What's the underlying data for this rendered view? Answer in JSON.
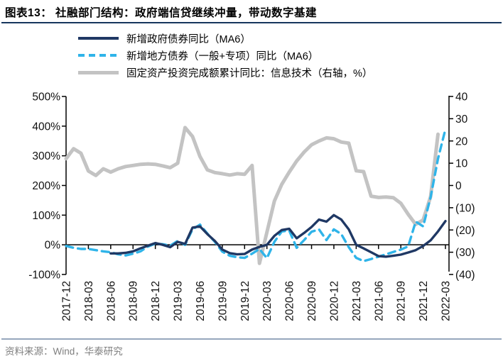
{
  "header": {
    "title": "图表13：  社融部门结构：政府端信贷继续冲量，带动数字基建"
  },
  "legend": [
    {
      "id": "gov_bonds",
      "label": "新增政府债券同比（MA6）",
      "color": "#1f3864",
      "style": "solid"
    },
    {
      "id": "local_bonds",
      "label": "新增地方债券（一般+专项）同比（MA6）",
      "color": "#2fb4e9",
      "style": "dashed"
    },
    {
      "id": "it_fai",
      "label": "固定资产投资完成额累计同比：信息技术（右轴，%）",
      "color": "#c3c3c3",
      "style": "solid"
    }
  ],
  "chart_data": {
    "type": "line",
    "title": "社融部门结构：政府端信贷继续冲量，带动数字基建",
    "grid": false,
    "legend_position": "top-left",
    "x": [
      "2017-12",
      "2018-01",
      "2018-02",
      "2018-03",
      "2018-04",
      "2018-05",
      "2018-06",
      "2018-07",
      "2018-08",
      "2018-09",
      "2018-10",
      "2018-11",
      "2018-12",
      "2019-01",
      "2019-02",
      "2019-03",
      "2019-04",
      "2019-05",
      "2019-06",
      "2019-07",
      "2019-08",
      "2019-09",
      "2019-10",
      "2019-11",
      "2019-12",
      "2020-01",
      "2020-02",
      "2020-03",
      "2020-04",
      "2020-05",
      "2020-06",
      "2020-07",
      "2020-08",
      "2020-09",
      "2020-10",
      "2020-11",
      "2020-12",
      "2021-01",
      "2021-02",
      "2021-03",
      "2021-04",
      "2021-05",
      "2021-06",
      "2021-07",
      "2021-08",
      "2021-09",
      "2021-10",
      "2021-11",
      "2021-12",
      "2022-01",
      "2022-02",
      "2022-03"
    ],
    "x_tick_labels": [
      "2017-12",
      "2018-03",
      "2018-06",
      "2018-09",
      "2018-12",
      "2019-03",
      "2019-06",
      "2019-09",
      "2019-12",
      "2020-03",
      "2020-06",
      "2020-09",
      "2020-12",
      "2021-03",
      "2021-06",
      "2021-09",
      "2021-12",
      "2022-03"
    ],
    "left_axis": {
      "unit": "%",
      "min": -100,
      "max": 500,
      "tick_values": [
        500,
        400,
        300,
        200,
        100,
        0,
        -100
      ],
      "tick_labels": [
        "500%",
        "400%",
        "300%",
        "200%",
        "100%",
        "0%",
        "-100%"
      ]
    },
    "right_axis": {
      "unit": "%",
      "min": -40,
      "max": 40,
      "tick_values": [
        40,
        30,
        20,
        10,
        0,
        -10,
        -20,
        -30,
        -40
      ],
      "tick_labels": [
        "40",
        "30",
        "20",
        "10",
        "0",
        "(10)",
        "(20)",
        "(30)",
        "(40)"
      ]
    },
    "series": [
      {
        "id": "it_fai",
        "name": "固定资产投资完成额累计同比：信息技术（右轴，%）",
        "axis": "right",
        "color": "#c3c3c3",
        "dash": false,
        "width": 5,
        "values": [
          12,
          16.5,
          14.5,
          6.5,
          4.5,
          7.5,
          6,
          7.5,
          8.5,
          9,
          9.5,
          9.7,
          9.5,
          8.8,
          8,
          10,
          26,
          22,
          13,
          7,
          5.8,
          5.3,
          4.7,
          5.3,
          5,
          9,
          -35,
          -21,
          -7,
          0.5,
          6,
          11,
          15,
          18.3,
          20,
          21.4,
          21,
          19.5,
          19,
          6.6,
          6.2,
          -4.8,
          -5.4,
          -5.2,
          -5.5,
          -8,
          -13,
          -17.5,
          -15.5,
          -5,
          23,
          null
        ]
      },
      {
        "id": "local_bonds",
        "name": "新增地方债券（一般+专项）同比（MA6）",
        "axis": "left",
        "color": "#2fb4e9",
        "dash": true,
        "width": 3.4,
        "values": [
          -4,
          -10,
          -14,
          -14,
          -18,
          -22,
          -25,
          -32,
          -36,
          -30,
          -22,
          -6,
          4,
          2,
          -3,
          13,
          0,
          52,
          68,
          38,
          10,
          -23,
          -37,
          -42,
          -44,
          -30,
          -14,
          -45,
          10,
          45,
          48,
          -10,
          16,
          44,
          52,
          16,
          52,
          36,
          -8,
          -44,
          -55,
          -48,
          -40,
          -32,
          -24,
          -16,
          -5,
          78,
          62,
          160,
          290,
          390
        ]
      },
      {
        "id": "gov_bonds",
        "name": "新增政府债券同比（MA6）",
        "axis": "left",
        "color": "#1f3864",
        "dash": false,
        "width": 3.4,
        "values": [
          null,
          null,
          null,
          null,
          null,
          null,
          -29,
          -29,
          -27,
          -22,
          -12,
          -3,
          6,
          0,
          -8,
          10,
          3,
          58,
          62,
          36,
          13,
          -16,
          -28,
          -32,
          -31,
          -16,
          -7,
          0,
          30,
          50,
          54,
          22,
          40,
          60,
          85,
          78,
          100,
          85,
          52,
          0,
          -12,
          -25,
          -38,
          -40,
          -37,
          -33,
          -26,
          -18,
          -4,
          15,
          45,
          80
        ]
      }
    ]
  },
  "footer": {
    "source": "资料来源：Wind，华泰研究"
  }
}
